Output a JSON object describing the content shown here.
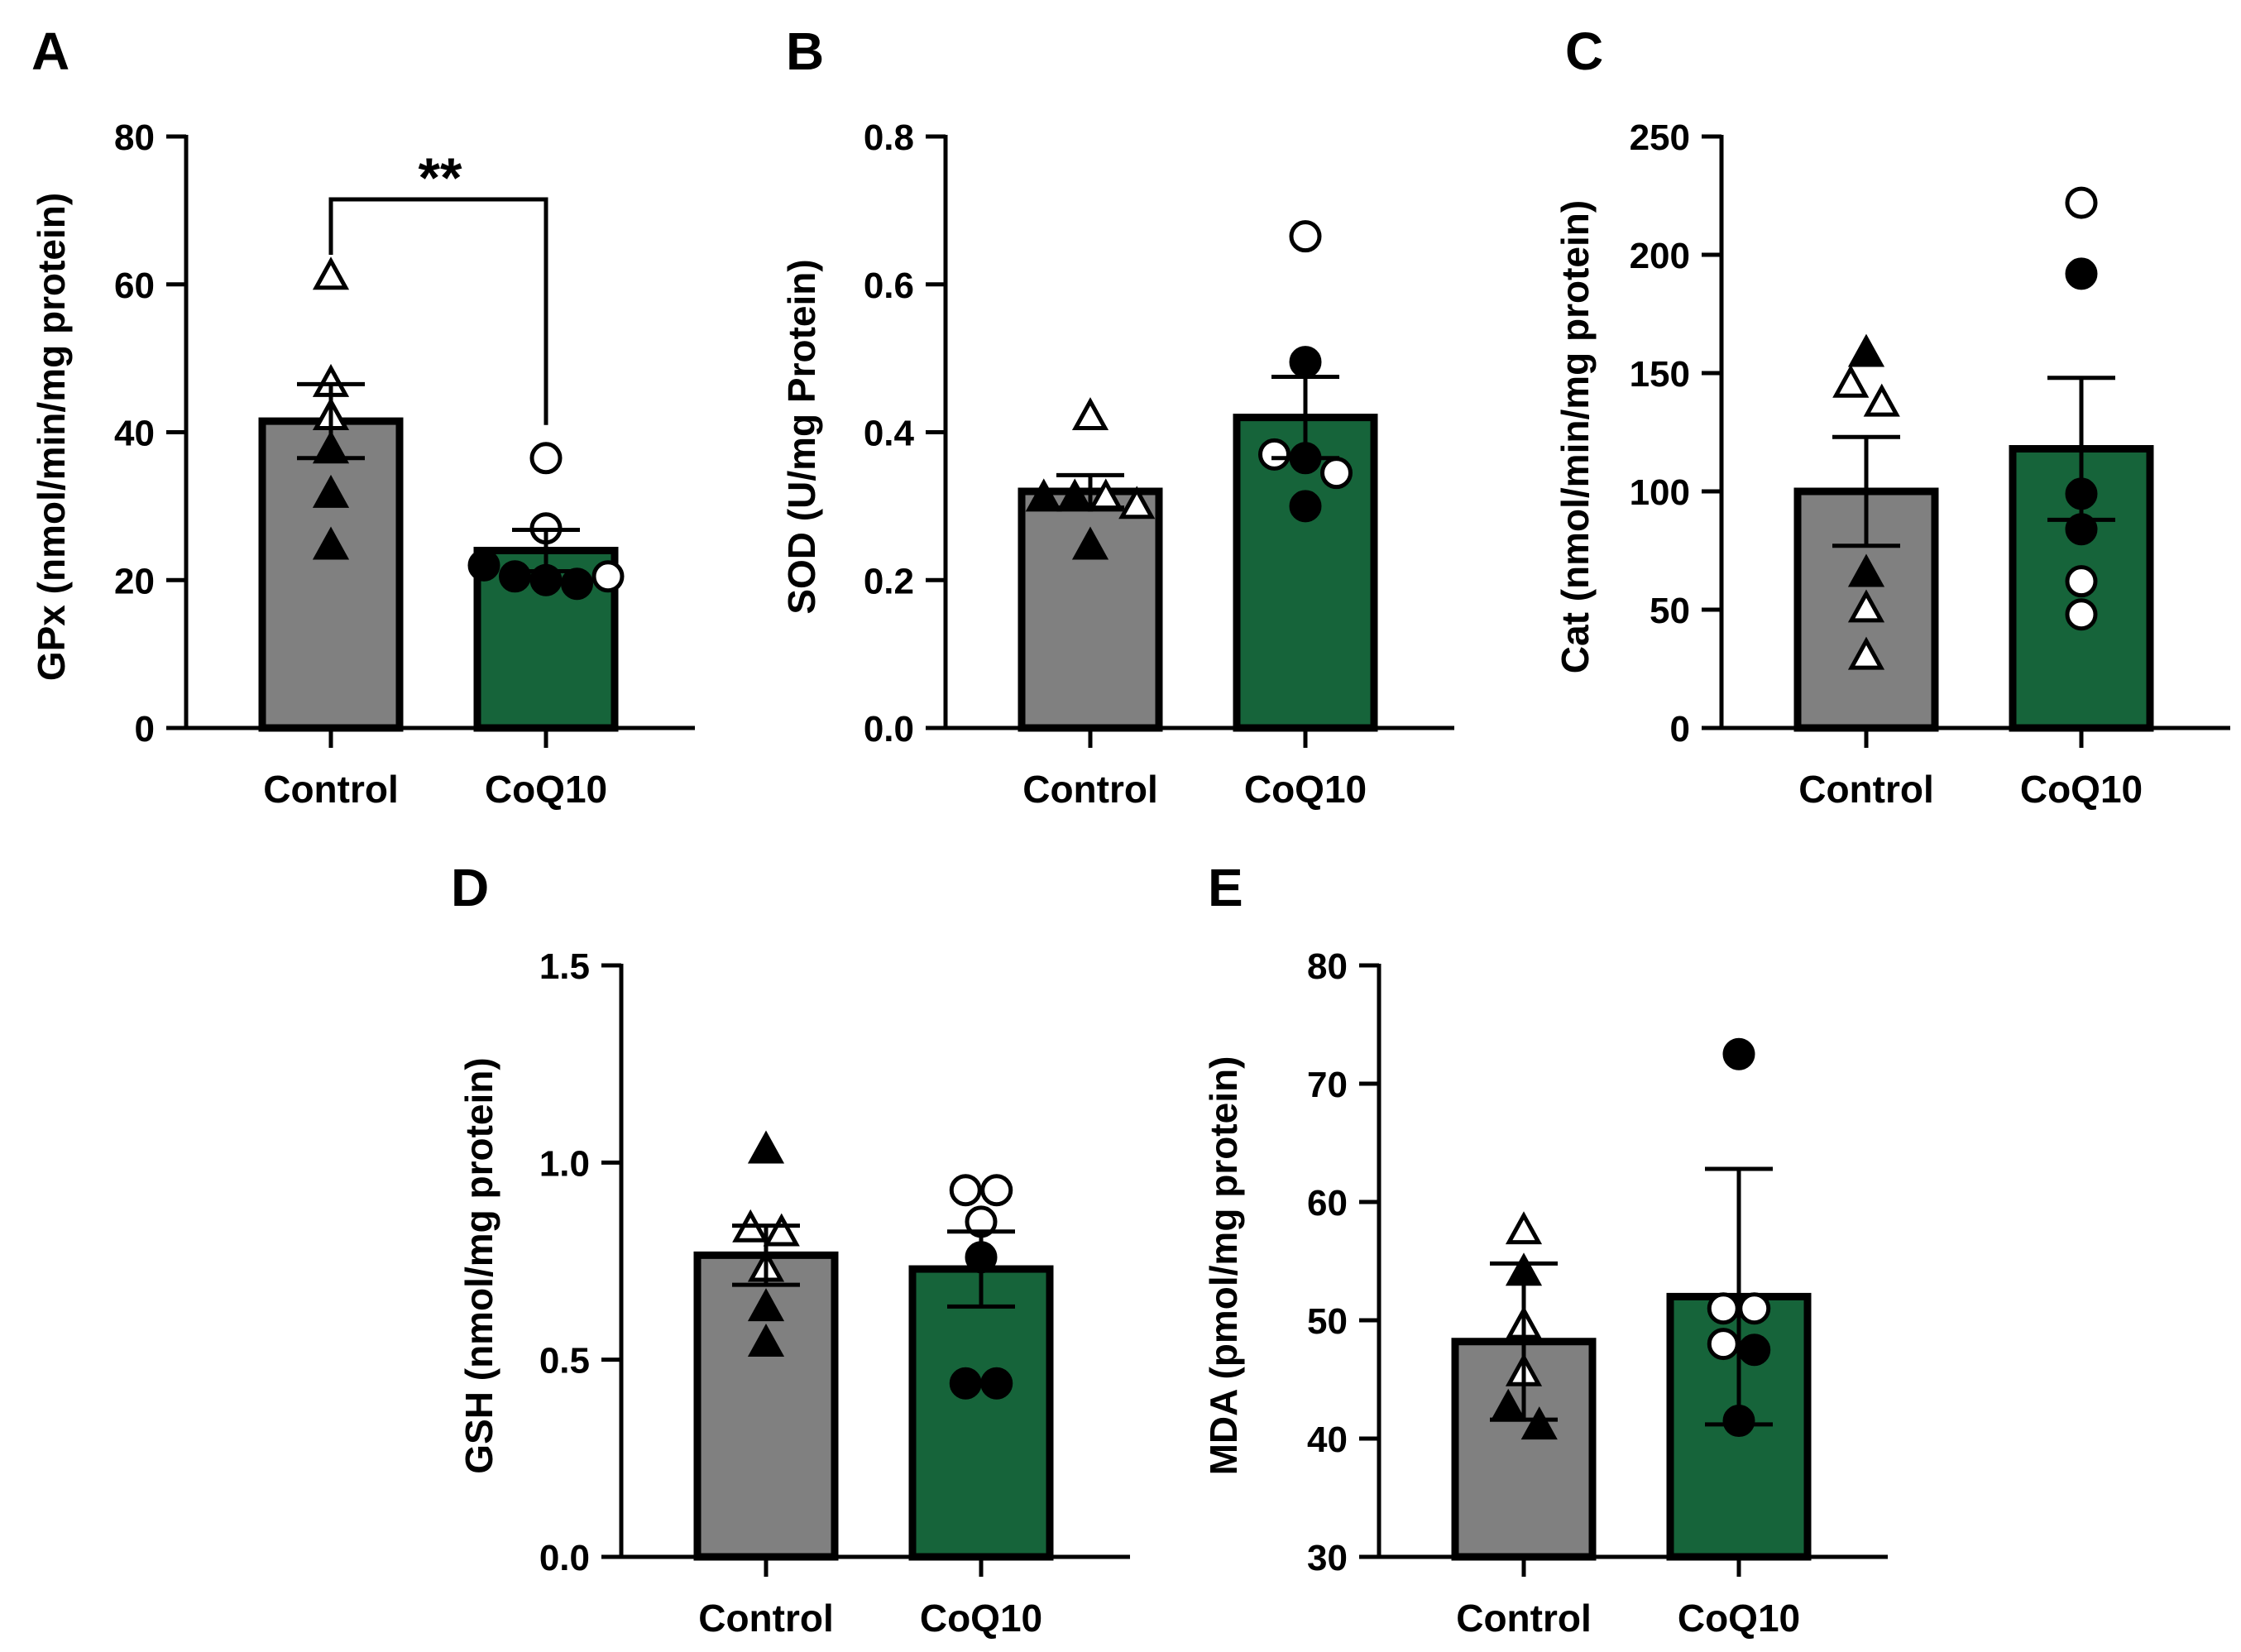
{
  "figure": {
    "colors": {
      "control": "#808080",
      "treated": "#16643a",
      "ink": "#000000",
      "open": "#ffffff"
    }
  },
  "chart_data": [
    {
      "panel": "A",
      "type": "bar",
      "ylabel": "GPx (nmol/min/mg protein)",
      "categories": [
        "Control",
        "CoQ10"
      ],
      "means": [
        41.5,
        24
      ],
      "sem": [
        5,
        2.8
      ],
      "ylim": [
        0,
        80
      ],
      "yticks": [
        0,
        20,
        40,
        60,
        80
      ],
      "ytick_labels": [
        "0",
        "20",
        "40",
        "60",
        "80"
      ],
      "points": [
        [
          {
            "v": 61,
            "filled": false
          },
          {
            "v": 46.5,
            "filled": false
          },
          {
            "v": 42,
            "filled": false
          },
          {
            "v": 37.5,
            "filled": true
          },
          {
            "v": 31.5,
            "filled": true
          },
          {
            "v": 24.5,
            "filled": true
          }
        ],
        [
          {
            "v": 36.5,
            "filled": false
          },
          {
            "v": 27,
            "filled": false
          },
          {
            "v": 22,
            "filled": true
          },
          {
            "v": 20.5,
            "filled": true
          },
          {
            "v": 20,
            "filled": true
          },
          {
            "v": 19.5,
            "filled": true
          },
          {
            "v": 20.5,
            "filled": false
          }
        ]
      ],
      "significance": "**"
    },
    {
      "panel": "B",
      "type": "bar",
      "ylabel": "SOD (U/mg Protein)",
      "categories": [
        "Control",
        "CoQ10"
      ],
      "means": [
        0.32,
        0.42
      ],
      "sem": [
        0.022,
        0.055
      ],
      "ylim": [
        0,
        0.8
      ],
      "yticks": [
        0,
        0.2,
        0.4,
        0.6,
        0.8
      ],
      "ytick_labels": [
        "0.0",
        "0.2",
        "0.4",
        "0.6",
        "0.8"
      ],
      "points": [
        [
          {
            "v": 0.42,
            "filled": false
          },
          {
            "v": 0.31,
            "filled": true
          },
          {
            "v": 0.31,
            "filled": true
          },
          {
            "v": 0.31,
            "filled": false
          },
          {
            "v": 0.3,
            "filled": false
          },
          {
            "v": 0.245,
            "filled": true
          }
        ],
        [
          {
            "v": 0.665,
            "filled": false
          },
          {
            "v": 0.495,
            "filled": true
          },
          {
            "v": 0.37,
            "filled": false
          },
          {
            "v": 0.365,
            "filled": true
          },
          {
            "v": 0.345,
            "filled": false
          },
          {
            "v": 0.3,
            "filled": true
          }
        ]
      ]
    },
    {
      "panel": "C",
      "type": "bar",
      "ylabel": "Cat (nmol/min/mg protein)",
      "categories": [
        "Control",
        "CoQ10"
      ],
      "means": [
        100,
        118
      ],
      "sem": [
        23,
        30
      ],
      "ylim": [
        0,
        250
      ],
      "yticks": [
        0,
        50,
        100,
        150,
        200,
        250
      ],
      "ytick_labels": [
        "0",
        "50",
        "100",
        "150",
        "200",
        "250"
      ],
      "points": [
        [
          {
            "v": 158,
            "filled": true
          },
          {
            "v": 145,
            "filled": false
          },
          {
            "v": 137,
            "filled": false
          },
          {
            "v": 65,
            "filled": true
          },
          {
            "v": 50,
            "filled": false
          },
          {
            "v": 30,
            "filled": false
          }
        ],
        [
          {
            "v": 222,
            "filled": false
          },
          {
            "v": 192,
            "filled": true
          },
          {
            "v": 99,
            "filled": true
          },
          {
            "v": 84,
            "filled": true
          },
          {
            "v": 62,
            "filled": false
          },
          {
            "v": 48,
            "filled": false
          }
        ]
      ]
    },
    {
      "panel": "D",
      "type": "bar",
      "ylabel": "GSH (nmol/mg protein)",
      "categories": [
        "Control",
        "CoQ10"
      ],
      "means": [
        0.765,
        0.73
      ],
      "sem": [
        0.075,
        0.095
      ],
      "ylim": [
        0,
        1.5
      ],
      "yticks": [
        0,
        0.5,
        1.0,
        1.5
      ],
      "ytick_labels": [
        "0.0",
        "0.5",
        "1.0",
        "1.5"
      ],
      "points": [
        [
          {
            "v": 1.03,
            "filled": true
          },
          {
            "v": 0.83,
            "filled": false
          },
          {
            "v": 0.82,
            "filled": false
          },
          {
            "v": 0.73,
            "filled": false
          },
          {
            "v": 0.63,
            "filled": true
          },
          {
            "v": 0.54,
            "filled": true
          }
        ],
        [
          {
            "v": 0.93,
            "filled": false
          },
          {
            "v": 0.93,
            "filled": false
          },
          {
            "v": 0.85,
            "filled": false
          },
          {
            "v": 0.76,
            "filled": true
          },
          {
            "v": 0.44,
            "filled": true
          },
          {
            "v": 0.44,
            "filled": true
          }
        ]
      ]
    },
    {
      "panel": "E",
      "type": "bar",
      "ylabel": "MDA (pmol/mg protein)",
      "categories": [
        "Control",
        "CoQ10"
      ],
      "means": [
        48.2,
        52
      ],
      "sem": [
        6.6,
        10.8
      ],
      "ylim": [
        30,
        80
      ],
      "yticks": [
        30,
        40,
        50,
        60,
        70,
        80
      ],
      "ytick_labels": [
        "30",
        "40",
        "50",
        "60",
        "70",
        "80"
      ],
      "points": [
        [
          {
            "v": 57.5,
            "filled": false
          },
          {
            "v": 54,
            "filled": true
          },
          {
            "v": 49.5,
            "filled": false
          },
          {
            "v": 45.5,
            "filled": false
          },
          {
            "v": 42.5,
            "filled": true
          },
          {
            "v": 41,
            "filled": true
          }
        ],
        [
          {
            "v": 72.5,
            "filled": true
          },
          {
            "v": 51,
            "filled": false
          },
          {
            "v": 51,
            "filled": false
          },
          {
            "v": 48,
            "filled": false
          },
          {
            "v": 47.5,
            "filled": true
          },
          {
            "v": 41.5,
            "filled": true
          }
        ]
      ]
    }
  ]
}
